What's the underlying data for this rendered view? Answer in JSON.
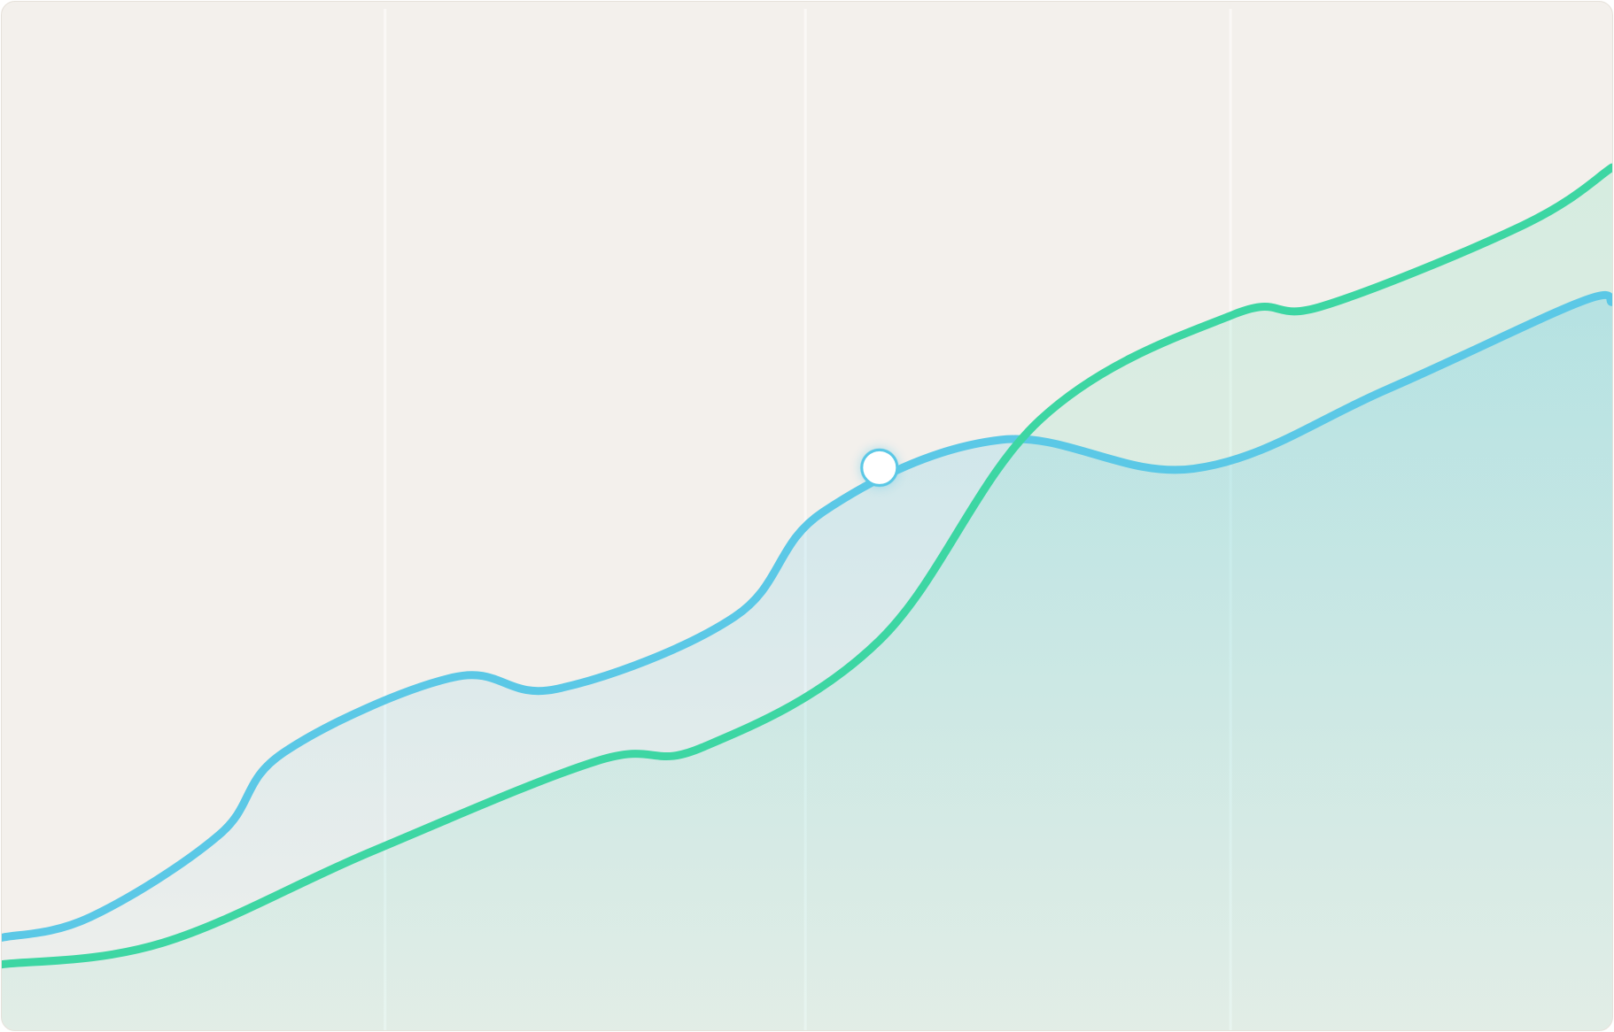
{
  "chart_data": {
    "type": "area",
    "title": "",
    "xlabel": "",
    "ylabel": "",
    "xlim": [
      0,
      100
    ],
    "ylim": [
      0,
      100
    ],
    "grid": true,
    "legend": "none",
    "x": [
      0,
      5,
      10,
      13.5,
      17.5,
      23,
      28,
      34,
      37,
      45.5,
      54.5,
      50.5,
      61.5,
      64.5,
      76.5,
      82,
      86,
      94.5,
      100
    ],
    "series": [
      {
        "color": "#5bc8e6",
        "points": [
          [
            0,
            9
          ],
          [
            5.5,
            11
          ],
          [
            13.5,
            19
          ],
          [
            17.5,
            27
          ],
          [
            28,
            34.3
          ],
          [
            34.5,
            33.2
          ],
          [
            45.5,
            40.2
          ],
          [
            51,
            50.4
          ],
          [
            62,
            57.4
          ],
          [
            74,
            54.6
          ],
          [
            86,
            62.3
          ],
          [
            98,
            70.8
          ],
          [
            100,
            70.8
          ]
        ],
        "highlight": {
          "x": 54.5,
          "y": 54.7
        }
      },
      {
        "color": "#3dd6a3",
        "points": [
          [
            0,
            6.4
          ],
          [
            10,
            8.5
          ],
          [
            23,
            17.4
          ],
          [
            37,
            26.2
          ],
          [
            43.5,
            27.5
          ],
          [
            54.5,
            37.9
          ],
          [
            64.5,
            59.4
          ],
          [
            76.5,
            69.6
          ],
          [
            82,
            70.4
          ],
          [
            94.5,
            78.3
          ],
          [
            100,
            83.9
          ]
        ]
      }
    ],
    "gridlines_x": [
      23.8,
      49.9,
      76.3
    ]
  },
  "colors": {
    "background": "#f3f0ec",
    "series_blue": "#5bc8e6",
    "series_green": "#3dd6a3",
    "gridline": "#faf8f6",
    "marker": "#ffffff"
  }
}
